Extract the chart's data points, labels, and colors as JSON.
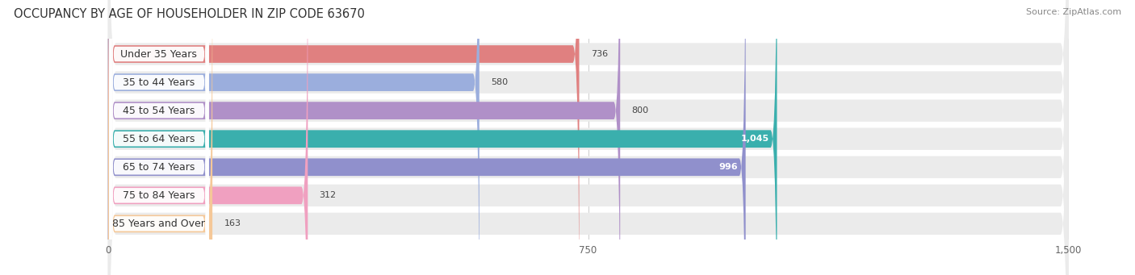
{
  "title": "OCCUPANCY BY AGE OF HOUSEHOLDER IN ZIP CODE 63670",
  "source": "Source: ZipAtlas.com",
  "categories": [
    "Under 35 Years",
    "35 to 44 Years",
    "45 to 54 Years",
    "55 to 64 Years",
    "65 to 74 Years",
    "75 to 84 Years",
    "85 Years and Over"
  ],
  "values": [
    736,
    580,
    800,
    1045,
    996,
    312,
    163
  ],
  "bar_colors": [
    "#E08080",
    "#9BAEDD",
    "#B090C8",
    "#3AAFAD",
    "#9090CC",
    "#F0A0C0",
    "#F5C898"
  ],
  "bar_bg_color": "#EBEBEB",
  "xlim_min": -160,
  "xlim_max": 1560,
  "xticks": [
    0,
    750,
    1500
  ],
  "inside_label_indices": [
    3,
    4
  ],
  "title_fontsize": 10.5,
  "source_fontsize": 8,
  "tick_fontsize": 8.5,
  "bar_label_fontsize": 8,
  "category_fontsize": 9
}
